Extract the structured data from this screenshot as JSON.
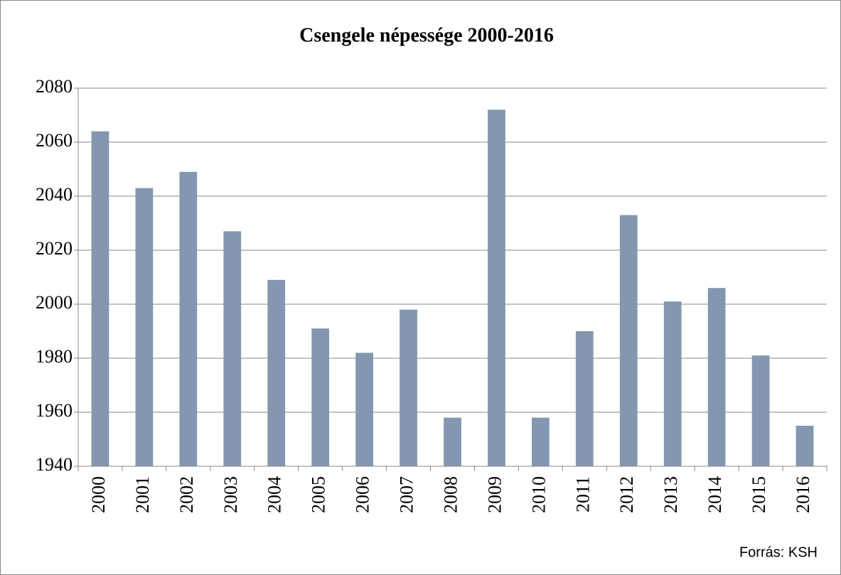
{
  "chart_data": {
    "type": "bar",
    "title": "Csengele népessége 2000-2016",
    "categories": [
      "2000",
      "2001",
      "2002",
      "2003",
      "2004",
      "2005",
      "2006",
      "2007",
      "2008",
      "2009",
      "2010",
      "2011",
      "2012",
      "2013",
      "2014",
      "2015",
      "2016"
    ],
    "values": [
      2064,
      2043,
      2049,
      2027,
      2009,
      1991,
      1982,
      1998,
      1958,
      2072,
      1958,
      1990,
      2033,
      2001,
      2006,
      1981,
      1955
    ],
    "color": "#8497b0",
    "ylim": [
      1940,
      2080
    ],
    "yticks": [
      1940,
      1960,
      1980,
      2000,
      2020,
      2040,
      2060,
      2080
    ],
    "grid": true,
    "annotation": "Forrás: KSH"
  }
}
